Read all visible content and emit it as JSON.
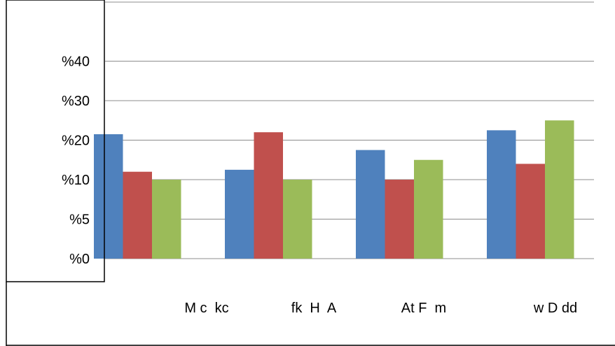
{
  "chart_data": {
    "type": "bar",
    "categories": [
      "M c  kc",
      "fk  H  A",
      "At F  m",
      "w D dd"
    ],
    "series": [
      {
        "color": "#4F81BD",
        "values": [
          21.5,
          12.5,
          17.5,
          22.5
        ]
      },
      {
        "color": "#C0504D",
        "values": [
          12,
          22,
          10,
          14
        ]
      },
      {
        "color": "#9BBB59",
        "values": [
          10,
          10,
          15,
          25
        ]
      }
    ],
    "y_ticks": [
      {
        "label": "%0",
        "value": 0
      },
      {
        "label": "%5",
        "value": 5
      },
      {
        "label": "%10",
        "value": 10
      },
      {
        "label": "%20",
        "value": 20
      },
      {
        "label": "%30",
        "value": 30
      },
      {
        "label": "%40",
        "value": 40
      }
    ],
    "grid": true,
    "legend": "none"
  }
}
